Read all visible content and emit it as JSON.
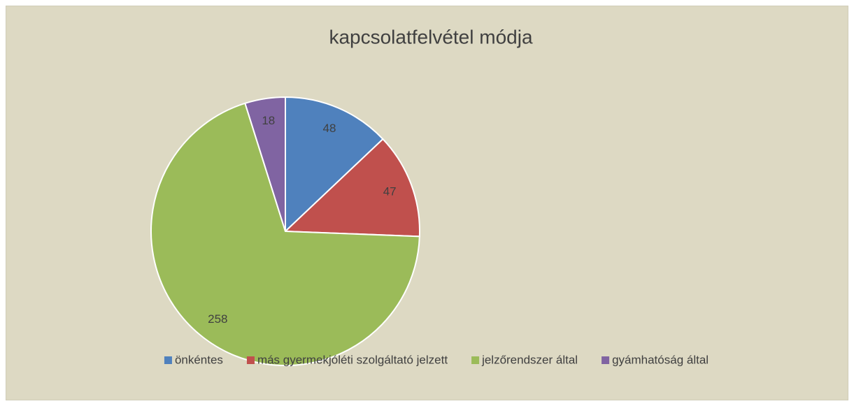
{
  "chart_data": {
    "type": "pie",
    "title": "kapcsolatfelvétel módja",
    "categories": [
      "önkéntes",
      "más gyermekjóléti szolgáltató jelzett",
      "jelzőrendszer által",
      "gyámhatóság által"
    ],
    "values": [
      48,
      47,
      258,
      18
    ],
    "colors": [
      "#4f81bd",
      "#c0504d",
      "#9bbb59",
      "#8064a2"
    ],
    "legend": "bottom"
  }
}
